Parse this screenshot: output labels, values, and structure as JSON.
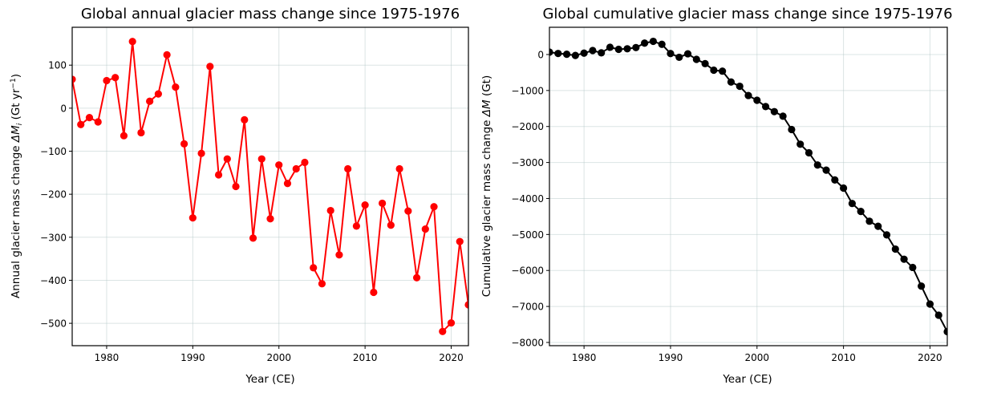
{
  "chart_data": [
    {
      "type": "line",
      "title": "Global annual glacier mass change since 1975-1976",
      "xlabel": "Year (CE)",
      "ylabel_parts": [
        "Annual glacier mass change ",
        "ΔM",
        "i",
        " (Gt yr",
        "−1",
        ")"
      ],
      "xlim": [
        1976,
        2022
      ],
      "ylim": [
        -552,
        188
      ],
      "xticks": [
        1980,
        1990,
        2000,
        2010,
        2020
      ],
      "xtick_labels": [
        "1980",
        "1990",
        "2000",
        "2010",
        "2020"
      ],
      "yticks": [
        100,
        0,
        -100,
        -200,
        -300,
        -400,
        -500
      ],
      "ytick_labels": [
        "100",
        "0",
        "−100",
        "−200",
        "−300",
        "−400",
        "−500"
      ],
      "grid": true,
      "series": [
        {
          "name": "Annual mass change",
          "color": "#ff0000",
          "marker": "circle",
          "x": [
            1976,
            1977,
            1978,
            1979,
            1980,
            1981,
            1982,
            1983,
            1984,
            1985,
            1986,
            1987,
            1988,
            1989,
            1990,
            1991,
            1992,
            1993,
            1994,
            1995,
            1996,
            1997,
            1998,
            1999,
            2000,
            2001,
            2002,
            2003,
            2004,
            2005,
            2006,
            2007,
            2008,
            2009,
            2010,
            2011,
            2012,
            2013,
            2014,
            2015,
            2016,
            2017,
            2018,
            2019,
            2020,
            2021,
            2022
          ],
          "values": [
            67,
            -38,
            -22,
            -32,
            64,
            71,
            -64,
            155,
            -57,
            16,
            33,
            124,
            49,
            -83,
            -255,
            -105,
            97,
            -155,
            -118,
            -182,
            -27,
            -302,
            -118,
            -257,
            -132,
            -175,
            -141,
            -126,
            -371,
            -408,
            -238,
            -341,
            -141,
            -274,
            -225,
            -428,
            -221,
            -272,
            -141,
            -239,
            -394,
            -281,
            -229,
            -519,
            -499,
            -310,
            -457
          ]
        }
      ]
    },
    {
      "type": "line",
      "title": "Global cumulative glacier mass change since 1975-1976",
      "xlabel": "Year (CE)",
      "ylabel_parts": [
        "Cumulative glacier mass change ",
        "ΔM",
        "",
        " (Gt)",
        "",
        ""
      ],
      "xlim": [
        1976,
        2022
      ],
      "ylim": [
        -8090,
        757
      ],
      "xticks": [
        1980,
        1990,
        2000,
        2010,
        2020
      ],
      "xtick_labels": [
        "1980",
        "1990",
        "2000",
        "2010",
        "2020"
      ],
      "yticks": [
        0,
        -1000,
        -2000,
        -3000,
        -4000,
        -5000,
        -6000,
        -7000,
        -8000
      ],
      "ytick_labels": [
        "0",
        "−1000",
        "−2000",
        "−3000",
        "−4000",
        "−5000",
        "−6000",
        "−7000",
        "−8000"
      ],
      "grid": true,
      "series": [
        {
          "name": "Cumulative mass change",
          "color": "#000000",
          "marker": "circle",
          "x": [
            1976,
            1977,
            1978,
            1979,
            1980,
            1981,
            1982,
            1983,
            1984,
            1985,
            1986,
            1987,
            1988,
            1989,
            1990,
            1991,
            1992,
            1993,
            1994,
            1995,
            1996,
            1997,
            1998,
            1999,
            2000,
            2001,
            2002,
            2003,
            2004,
            2005,
            2006,
            2007,
            2008,
            2009,
            2010,
            2011,
            2012,
            2013,
            2014,
            2015,
            2016,
            2017,
            2018,
            2019,
            2020,
            2021,
            2022
          ],
          "values": [
            67,
            29,
            7,
            -25,
            39,
            110,
            46,
            201,
            144,
            160,
            193,
            317,
            366,
            283,
            28,
            -77,
            20,
            -135,
            -253,
            -435,
            -462,
            -764,
            -882,
            -1139,
            -1271,
            -1446,
            -1587,
            -1713,
            -2084,
            -2492,
            -2730,
            -3071,
            -3212,
            -3486,
            -3711,
            -4139,
            -4360,
            -4632,
            -4773,
            -5012,
            -5406,
            -5687,
            -5916,
            -6435,
            -6934,
            -7244,
            -7701
          ]
        }
      ]
    }
  ]
}
